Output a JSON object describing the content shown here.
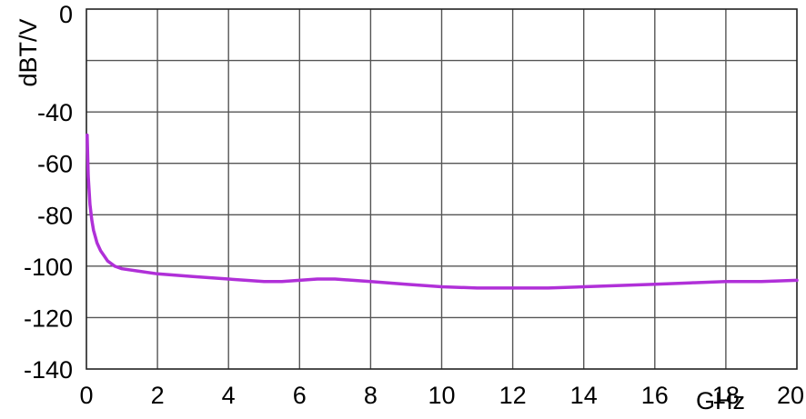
{
  "chart_data": {
    "type": "line",
    "title": "",
    "xlabel": "GHz",
    "ylabel": "dBT/V",
    "xlim": [
      0,
      20
    ],
    "ylim": [
      -140,
      0
    ],
    "x_ticks": [
      "0",
      "2",
      "4",
      "6",
      "8",
      "10",
      "12",
      "14",
      "16",
      "18",
      "20"
    ],
    "y_ticks": [
      "0",
      "-40",
      "-60",
      "-80",
      "-100",
      "-120",
      "-140"
    ],
    "grid": true,
    "colors": {
      "series": "#b030d8",
      "grid": "#555555"
    },
    "series": [
      {
        "name": "",
        "x": [
          0.02,
          0.05,
          0.1,
          0.15,
          0.2,
          0.3,
          0.4,
          0.5,
          0.6,
          0.8,
          1.0,
          1.5,
          2.0,
          3.0,
          4.0,
          5.0,
          5.5,
          6.0,
          6.5,
          7.0,
          7.5,
          8.0,
          9.0,
          10.0,
          11.0,
          12.0,
          13.0,
          14.0,
          15.0,
          16.0,
          17.0,
          18.0,
          19.0,
          20.0
        ],
        "y": [
          -49,
          -65,
          -76,
          -82,
          -86,
          -91,
          -94,
          -96,
          -98,
          -100,
          -101,
          -102,
          -103,
          -104,
          -105,
          -106,
          -106,
          -105.5,
          -105,
          -105,
          -105.5,
          -106,
          -107,
          -108,
          -108.5,
          -108.5,
          -108.5,
          -108,
          -107.5,
          -107,
          -106.5,
          -106,
          -106,
          -105.5
        ]
      }
    ]
  }
}
